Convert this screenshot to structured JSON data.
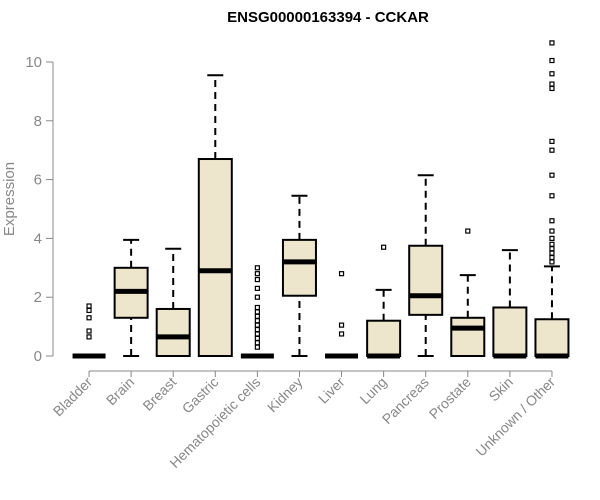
{
  "chart_data": {
    "type": "boxplot",
    "title": "ENSG00000163394 - CCKAR",
    "xlabel": "",
    "ylabel": "Expression",
    "ylim": [
      0,
      10.7
    ],
    "yticks": [
      0,
      2,
      4,
      6,
      8,
      10
    ],
    "grid": false,
    "legend": "none",
    "box_fill": "#ede6cc",
    "median_color": "#000000",
    "categories": [
      "Bladder",
      "Brain",
      "Breast",
      "Gastric",
      "Hematopoietic cells",
      "Kidney",
      "Liver",
      "Lung",
      "Pancreas",
      "Prostate",
      "Skin",
      "Unknown / Other"
    ],
    "boxes": [
      {
        "min": 0,
        "q1": 0,
        "median": 0,
        "q3": 0,
        "max": 0,
        "outliers": [
          0.65,
          0.85,
          1.3,
          1.55,
          1.7
        ]
      },
      {
        "min": 0,
        "q1": 1.3,
        "median": 2.2,
        "q3": 3.0,
        "max": 3.95,
        "outliers": []
      },
      {
        "min": 0,
        "q1": 0,
        "median": 0.65,
        "q3": 1.6,
        "max": 3.65,
        "outliers": []
      },
      {
        "min": 0,
        "q1": 0,
        "median": 2.9,
        "q3": 6.7,
        "max": 9.55,
        "outliers": []
      },
      {
        "min": 0,
        "q1": 0,
        "median": 0,
        "q3": 0,
        "max": 0,
        "outliers": [
          0.3,
          0.45,
          0.6,
          0.75,
          0.9,
          1.05,
          1.2,
          1.35,
          1.5,
          1.65,
          2.0,
          2.3,
          2.6,
          2.8,
          3.0
        ]
      },
      {
        "min": 0,
        "q1": 2.05,
        "median": 3.2,
        "q3": 3.95,
        "max": 5.45,
        "outliers": []
      },
      {
        "min": 0,
        "q1": 0,
        "median": 0,
        "q3": 0,
        "max": 0,
        "outliers": [
          0.75,
          1.05,
          2.8
        ]
      },
      {
        "min": 0,
        "q1": 0,
        "median": 0,
        "q3": 1.2,
        "max": 2.25,
        "outliers": [
          3.7
        ]
      },
      {
        "min": 0,
        "q1": 1.4,
        "median": 2.05,
        "q3": 3.75,
        "max": 6.15,
        "outliers": []
      },
      {
        "min": 0,
        "q1": 0,
        "median": 0.95,
        "q3": 1.3,
        "max": 2.75,
        "outliers": [
          4.25
        ]
      },
      {
        "min": 0,
        "q1": 0,
        "median": 0,
        "q3": 1.65,
        "max": 3.6,
        "outliers": []
      },
      {
        "min": 0,
        "q1": 0,
        "median": 0,
        "q3": 1.25,
        "max": 3.05,
        "outliers": [
          3.2,
          3.35,
          3.5,
          3.65,
          3.8,
          4.0,
          4.25,
          4.6,
          5.45,
          6.15,
          7.0,
          7.3,
          9.1,
          9.25,
          9.6,
          10.05,
          10.65
        ]
      }
    ]
  }
}
